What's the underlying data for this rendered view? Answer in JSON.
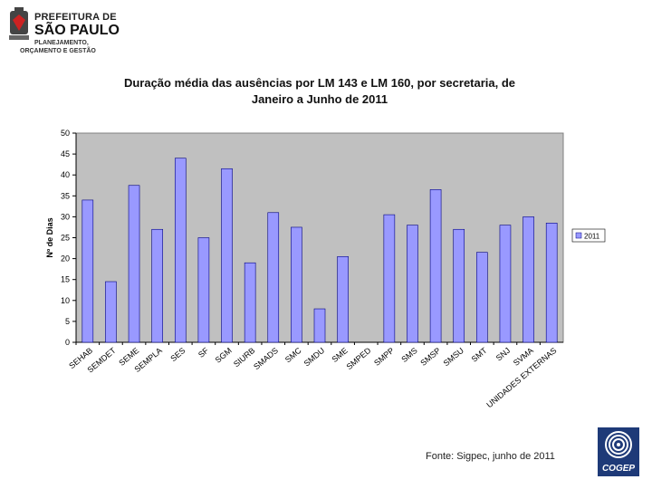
{
  "header": {
    "org_line1": "PREFEITURA DE",
    "org_line2": "SÃO PAULO",
    "org_line3": "PLANEJAMENTO,",
    "org_line4": "ORÇAMENTO E GESTÃO"
  },
  "footer": {
    "source": "Fonte: Sigpec, junho de 2011",
    "brand": "COGEP"
  },
  "colors": {
    "plot_background": "#c0c0c0",
    "bar_fill": "#9999ff",
    "bar_stroke": "#000080"
  },
  "chart_data": {
    "type": "bar",
    "title_line1": "Duração média das ausências por LM 143 e LM 160, por secretaria, de",
    "title_line2": "Janeiro a Junho de 2011",
    "xlabel": "",
    "ylabel": "Nº de Dias",
    "ylim": [
      0,
      50
    ],
    "yticks": [
      "0",
      "5",
      "10",
      "15",
      "20",
      "25",
      "30",
      "35",
      "40",
      "45",
      "50"
    ],
    "grid": false,
    "legend_position": "right",
    "categories": [
      "SEHAB",
      "SEMDET",
      "SEME",
      "SEMPLA",
      "SES",
      "SF",
      "SGM",
      "SIURB",
      "SMADS",
      "SMC",
      "SMDU",
      "SME",
      "SMPED",
      "SMPP",
      "SMS",
      "SMSP",
      "SMSU",
      "SMT",
      "SNJ",
      "SVMA",
      "UNIDADES EXTERNAS"
    ],
    "series": [
      {
        "name": "2011",
        "values": [
          34,
          14.5,
          37.5,
          27,
          44,
          25,
          41.5,
          19,
          31,
          27.5,
          8,
          20.5,
          0,
          30.5,
          28,
          36.5,
          27,
          21.5,
          28,
          30,
          28.5
        ]
      }
    ]
  }
}
